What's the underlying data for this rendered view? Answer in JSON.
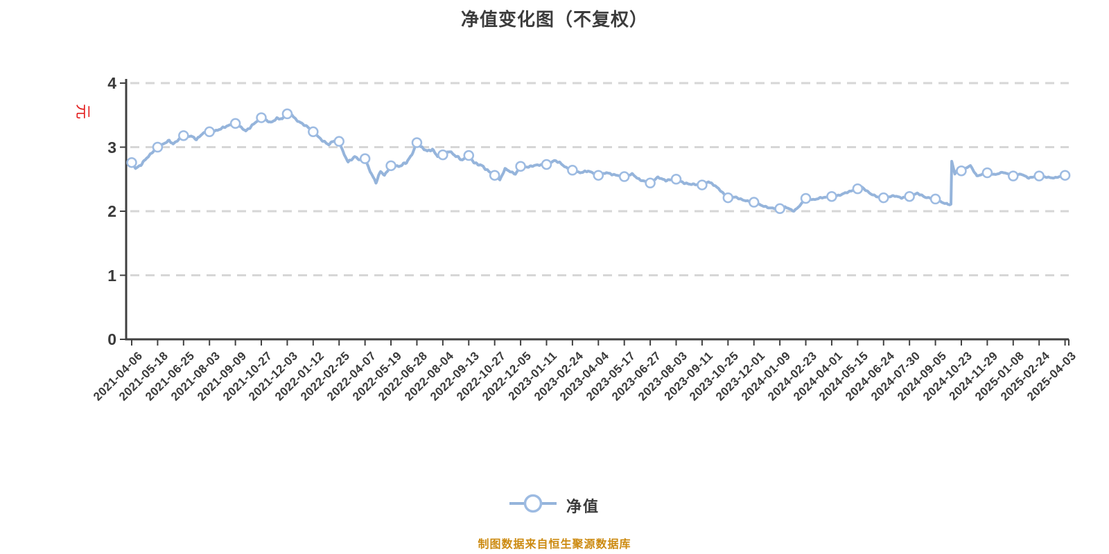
{
  "chart": {
    "title": "净值变化图（不复权）",
    "y_unit_label": "元",
    "legend": {
      "label": "净值"
    },
    "footer": {
      "text": "制图数据来自恒生聚源数据库"
    },
    "colors": {
      "line": "#95b4db",
      "marker_fill": "#ffffff",
      "marker_stroke": "#9dbbe2",
      "axis": "#404040",
      "grid": "#d6d6d6",
      "tick_text": "#3a3a3a",
      "title_text": "#3c3c3c",
      "unit_text": "#e21818",
      "footer_text": "#cc8a10"
    }
  },
  "chart_data": {
    "type": "line",
    "title": "净值变化图（不复权）",
    "ylabel": "元",
    "xlabel": "",
    "legend": [
      "净值"
    ],
    "legend_position": "bottom",
    "grid": "horizontal-dashed",
    "ylim": [
      0,
      4
    ],
    "yticks": [
      0,
      1,
      2,
      3,
      4
    ],
    "categories": [
      "2021-04-06",
      "2021-05-18",
      "2021-06-25",
      "2021-08-03",
      "2021-09-09",
      "2021-10-27",
      "2021-12-03",
      "2022-01-12",
      "2022-02-25",
      "2022-04-07",
      "2022-05-19",
      "2022-06-28",
      "2022-08-04",
      "2022-09-13",
      "2022-10-27",
      "2022-12-05",
      "2023-01-11",
      "2023-02-24",
      "2023-04-04",
      "2023-05-17",
      "2023-06-27",
      "2023-08-03",
      "2023-09-11",
      "2023-10-25",
      "2023-12-01",
      "2024-01-09",
      "2024-02-23",
      "2024-04-01",
      "2024-05-15",
      "2024-06-24",
      "2024-07-30",
      "2024-09-05",
      "2024-10-23",
      "2024-11-29",
      "2025-01-08",
      "2025-02-24",
      "2025-04-03"
    ],
    "values": [
      2.76,
      3.0,
      3.18,
      3.24,
      3.37,
      3.46,
      3.52,
      3.24,
      3.09,
      2.82,
      2.71,
      3.07,
      2.88,
      2.87,
      2.56,
      2.7,
      2.73,
      2.64,
      2.56,
      2.54,
      2.44,
      2.5,
      2.41,
      2.21,
      2.14,
      2.04,
      2.2,
      2.23,
      2.35,
      2.21,
      2.23,
      2.19,
      2.63,
      2.6,
      2.55,
      2.55,
      2.56
    ],
    "shape_anchors": [
      [
        0,
        2.76
      ],
      [
        0.15,
        2.67
      ],
      [
        0.35,
        2.72
      ],
      [
        0.6,
        2.84
      ],
      [
        0.8,
        2.92
      ],
      [
        1,
        3.0
      ],
      [
        1.25,
        3.06
      ],
      [
        1.45,
        3.1
      ],
      [
        1.6,
        3.05
      ],
      [
        2,
        3.18
      ],
      [
        2.3,
        3.17
      ],
      [
        2.5,
        3.12
      ],
      [
        2.75,
        3.22
      ],
      [
        3,
        3.24
      ],
      [
        3.3,
        3.26
      ],
      [
        3.6,
        3.32
      ],
      [
        4,
        3.37
      ],
      [
        4.15,
        3.33
      ],
      [
        4.4,
        3.25
      ],
      [
        4.7,
        3.36
      ],
      [
        5,
        3.46
      ],
      [
        5.2,
        3.42
      ],
      [
        5.35,
        3.38
      ],
      [
        5.6,
        3.45
      ],
      [
        5.8,
        3.44
      ],
      [
        6,
        3.52
      ],
      [
        6.1,
        3.55
      ],
      [
        6.3,
        3.44
      ],
      [
        6.6,
        3.36
      ],
      [
        6.8,
        3.31
      ],
      [
        7,
        3.24
      ],
      [
        7.3,
        3.12
      ],
      [
        7.6,
        3.04
      ],
      [
        7.8,
        3.1
      ],
      [
        8,
        3.09
      ],
      [
        8.2,
        2.88
      ],
      [
        8.35,
        2.77
      ],
      [
        8.6,
        2.85
      ],
      [
        8.8,
        2.8
      ],
      [
        9,
        2.82
      ],
      [
        9.2,
        2.62
      ],
      [
        9.42,
        2.45
      ],
      [
        9.6,
        2.62
      ],
      [
        9.75,
        2.56
      ],
      [
        10,
        2.71
      ],
      [
        10.3,
        2.7
      ],
      [
        10.6,
        2.76
      ],
      [
        10.8,
        2.88
      ],
      [
        11,
        3.07
      ],
      [
        11.1,
        3.02
      ],
      [
        11.4,
        2.94
      ],
      [
        11.6,
        2.96
      ],
      [
        11.8,
        2.86
      ],
      [
        12,
        2.88
      ],
      [
        12.25,
        2.94
      ],
      [
        12.5,
        2.86
      ],
      [
        12.75,
        2.8
      ],
      [
        13,
        2.87
      ],
      [
        13.2,
        2.76
      ],
      [
        13.5,
        2.71
      ],
      [
        13.75,
        2.63
      ],
      [
        14,
        2.56
      ],
      [
        14.2,
        2.49
      ],
      [
        14.4,
        2.66
      ],
      [
        14.6,
        2.62
      ],
      [
        14.8,
        2.58
      ],
      [
        15,
        2.7
      ],
      [
        15.3,
        2.69
      ],
      [
        15.6,
        2.72
      ],
      [
        16,
        2.73
      ],
      [
        16.3,
        2.79
      ],
      [
        16.5,
        2.76
      ],
      [
        16.8,
        2.67
      ],
      [
        17,
        2.64
      ],
      [
        17.3,
        2.6
      ],
      [
        17.6,
        2.63
      ],
      [
        18,
        2.56
      ],
      [
        18.3,
        2.6
      ],
      [
        18.6,
        2.57
      ],
      [
        19,
        2.54
      ],
      [
        19.3,
        2.58
      ],
      [
        19.6,
        2.49
      ],
      [
        20,
        2.44
      ],
      [
        20.3,
        2.53
      ],
      [
        20.6,
        2.48
      ],
      [
        21,
        2.5
      ],
      [
        21.3,
        2.44
      ],
      [
        21.6,
        2.42
      ],
      [
        22,
        2.41
      ],
      [
        22.25,
        2.46
      ],
      [
        22.5,
        2.4
      ],
      [
        23,
        2.21
      ],
      [
        23.3,
        2.22
      ],
      [
        23.6,
        2.17
      ],
      [
        24,
        2.14
      ],
      [
        24.3,
        2.09
      ],
      [
        24.6,
        2.05
      ],
      [
        25,
        2.04
      ],
      [
        25.2,
        2.07
      ],
      [
        25.55,
        2.0
      ],
      [
        25.75,
        2.08
      ],
      [
        26,
        2.2
      ],
      [
        26.3,
        2.18
      ],
      [
        26.6,
        2.21
      ],
      [
        27,
        2.23
      ],
      [
        27.3,
        2.25
      ],
      [
        27.7,
        2.31
      ],
      [
        28,
        2.35
      ],
      [
        28.15,
        2.38
      ],
      [
        28.5,
        2.27
      ],
      [
        28.8,
        2.22
      ],
      [
        29,
        2.21
      ],
      [
        29.4,
        2.24
      ],
      [
        29.7,
        2.21
      ],
      [
        30,
        2.23
      ],
      [
        30.3,
        2.28
      ],
      [
        30.6,
        2.22
      ],
      [
        31,
        2.19
      ],
      [
        31.3,
        2.13
      ],
      [
        31.55,
        2.1
      ],
      [
        31.6,
        2.11
      ],
      [
        31.63,
        2.78
      ],
      [
        31.75,
        2.58
      ],
      [
        31.88,
        2.67
      ],
      [
        32,
        2.63
      ],
      [
        32.2,
        2.68
      ],
      [
        32.35,
        2.71
      ],
      [
        32.6,
        2.55
      ],
      [
        33,
        2.6
      ],
      [
        33.3,
        2.57
      ],
      [
        33.6,
        2.61
      ],
      [
        34,
        2.55
      ],
      [
        34.3,
        2.58
      ],
      [
        34.6,
        2.52
      ],
      [
        35,
        2.55
      ],
      [
        35.3,
        2.53
      ],
      [
        35.6,
        2.52
      ],
      [
        36,
        2.56
      ]
    ],
    "annotations": {
      "footer": "制图数据来自恒生聚源数据库"
    }
  }
}
